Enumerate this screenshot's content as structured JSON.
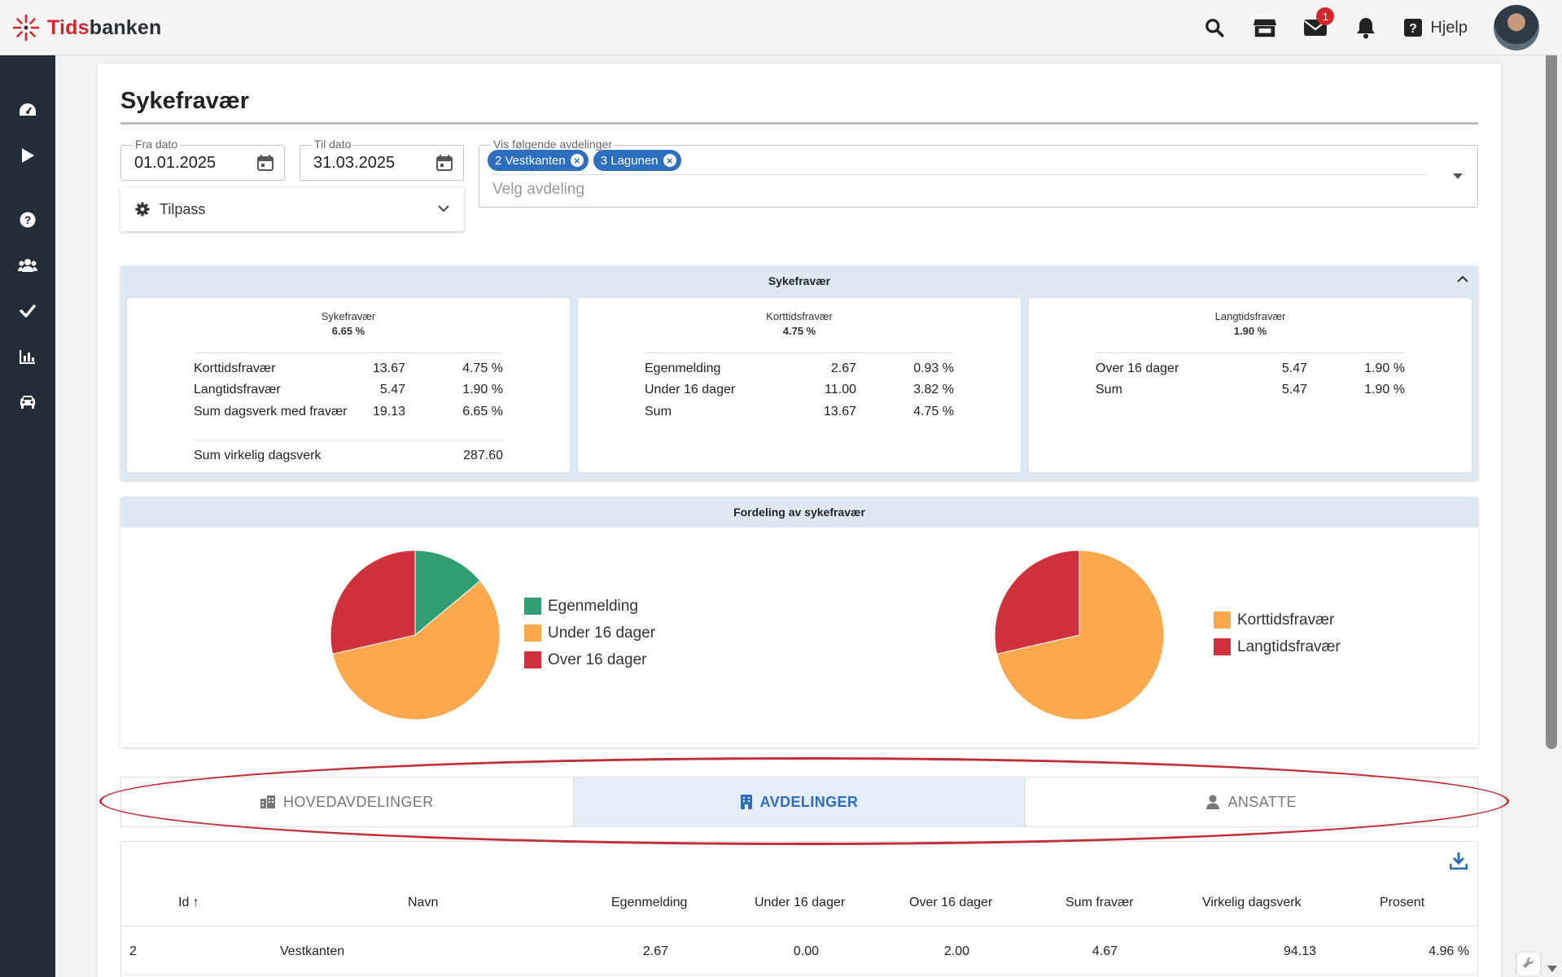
{
  "header": {
    "logo_part1": "Tids",
    "logo_part2": "banken",
    "mail_badge": "1",
    "help_label": "Hjelp",
    "icons": [
      "search-icon",
      "store-icon",
      "mail-icon",
      "bell-icon",
      "help-icon"
    ]
  },
  "sidebar": {
    "items": [
      "dashboard-icon",
      "play-icon",
      "help-icon",
      "users-icon",
      "check-icon",
      "chart-icon",
      "car-icon"
    ]
  },
  "page": {
    "title": "Sykefravær"
  },
  "filters": {
    "from_label": "Fra dato",
    "from_value": "01.01.2025",
    "to_label": "Til dato",
    "to_value": "31.03.2025",
    "customize_label": "Tilpass",
    "departments_label": "Vis følgende avdelinger",
    "departments_selected": [
      "2 Vestkanten",
      "3 Lagunen"
    ],
    "departments_placeholder": "Velg avdeling"
  },
  "summary": {
    "title": "Sykefravær",
    "cards": [
      {
        "title": "Sykefravær",
        "value": "6.65 %",
        "rows": [
          {
            "label": "Korttidsfravær",
            "v1": "13.67",
            "v2": "4.75 %"
          },
          {
            "label": "Langtidsfravær",
            "v1": "5.47",
            "v2": "1.90 %"
          },
          {
            "label": "Sum dagsverk med fravær",
            "v1": "19.13",
            "v2": "6.65 %"
          }
        ],
        "footer": {
          "label": "Sum virkelig dagsverk",
          "value": "287.60"
        }
      },
      {
        "title": "Korttidsfravær",
        "value": "4.75 %",
        "rows": [
          {
            "label": "Egenmelding",
            "v1": "2.67",
            "v2": "0.93 %"
          },
          {
            "label": "Under 16 dager",
            "v1": "11.00",
            "v2": "3.82 %"
          },
          {
            "label": "Sum",
            "v1": "13.67",
            "v2": "4.75 %"
          }
        ]
      },
      {
        "title": "Langtidsfravær",
        "value": "1.90 %",
        "rows": [
          {
            "label": "Over 16 dager",
            "v1": "5.47",
            "v2": "1.90 %"
          },
          {
            "label": "Sum",
            "v1": "5.47",
            "v2": "1.90 %"
          }
        ]
      }
    ]
  },
  "distribution": {
    "title": "Fordeling av sykefravær",
    "colors": {
      "green": "#2f9e73",
      "orange": "#fba94c",
      "red": "#d0323d"
    }
  },
  "chart_data": [
    {
      "type": "pie",
      "categories": [
        "Egenmelding",
        "Under 16 dager",
        "Over 16 dager"
      ],
      "values": [
        2.67,
        11.0,
        5.47
      ],
      "colors": [
        "#2f9e73",
        "#fba94c",
        "#d0323d"
      ],
      "legend": "right"
    },
    {
      "type": "pie",
      "categories": [
        "Korttidsfravær",
        "Langtidsfravær"
      ],
      "values": [
        13.67,
        5.47
      ],
      "colors": [
        "#fba94c",
        "#d0323d"
      ],
      "legend": "right"
    }
  ],
  "tabs": [
    {
      "label": "HOVEDAVDELINGER",
      "icon": "building-icon",
      "active": false
    },
    {
      "label": "AVDELINGER",
      "icon": "office-icon",
      "active": true
    },
    {
      "label": "ANSATTE",
      "icon": "person-icon",
      "active": false
    }
  ],
  "table": {
    "columns": [
      "Id",
      "Navn",
      "Egenmelding",
      "Under 16 dager",
      "Over 16 dager",
      "Sum fravær",
      "Virkelig dagsverk",
      "Prosent"
    ],
    "rows": [
      [
        "2",
        "Vestkanten",
        "2.67",
        "0.00",
        "2.00",
        "4.67",
        "94.13",
        "4.96 %"
      ]
    ]
  }
}
